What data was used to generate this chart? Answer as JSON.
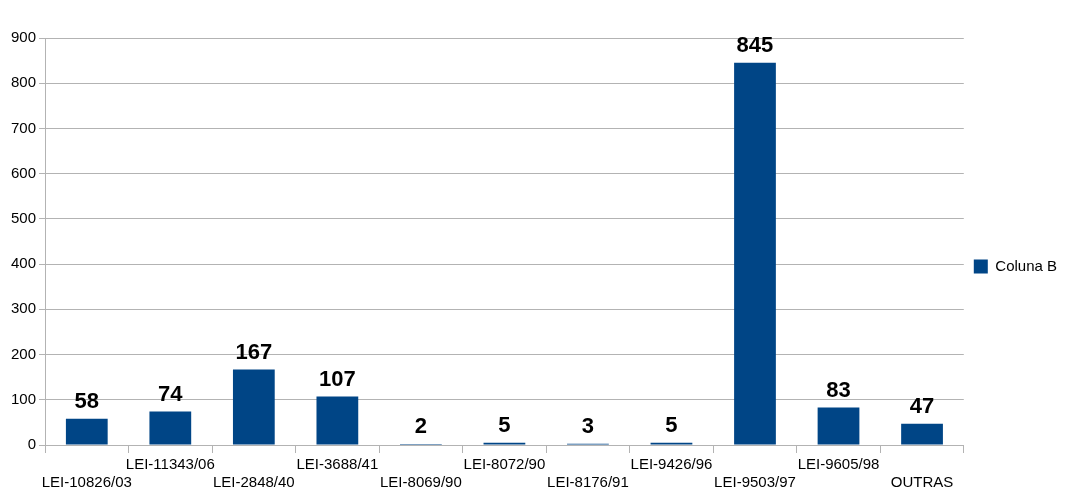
{
  "chart_data": {
    "type": "bar",
    "categories": [
      "LEI-10826/03",
      "LEI-11343/06",
      "LEI-2848/40",
      "LEI-3688/41",
      "LEI-8069/90",
      "LEI-8072/90",
      "LEI-8176/91",
      "LEI-9426/96",
      "LEI-9503/97",
      "LEI-9605/98",
      "OUTRAS"
    ],
    "series": [
      {
        "name": "Coluna B",
        "color": "#004586",
        "values": [
          58,
          74,
          167,
          107,
          2,
          5,
          3,
          5,
          845,
          83,
          47
        ]
      }
    ],
    "ylim": [
      0,
      900
    ],
    "yticks": [
      0,
      100,
      200,
      300,
      400,
      500,
      600,
      700,
      800,
      900
    ],
    "grid": "y",
    "legend": "right",
    "data_labels": true
  }
}
